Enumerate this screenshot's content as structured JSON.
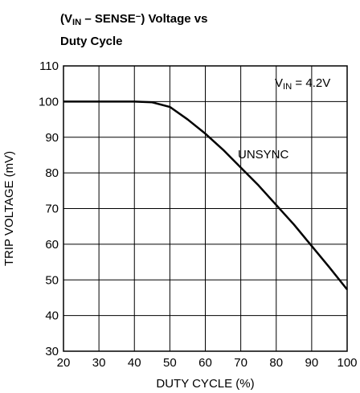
{
  "chart_data": {
    "type": "line",
    "title": [
      [
        {
          "text": "(V"
        },
        {
          "text": "IN",
          "sub": true
        },
        {
          "text": " – SENSE"
        },
        {
          "text": "−",
          "sup": true
        },
        {
          "text": ") Voltage vs"
        }
      ],
      [
        {
          "text": "Duty Cycle"
        }
      ]
    ],
    "xlabel": "DUTY CYCLE (%)",
    "ylabel": "TRIP VOLTAGE (mV)",
    "annotations": [
      [
        {
          "text": "V"
        },
        {
          "text": "IN",
          "sub": true
        },
        {
          "text": " = 4.2V"
        }
      ],
      [
        {
          "text": "UNSYNC"
        }
      ]
    ],
    "x": [
      20,
      30,
      40,
      45,
      50,
      55,
      60,
      65,
      70,
      75,
      80,
      85,
      90,
      95,
      100
    ],
    "series": [
      {
        "name": "UNSYNC",
        "color": "#000000",
        "values": [
          100,
          100,
          100,
          99.8,
          98.5,
          95,
          91,
          86.5,
          81.5,
          76.5,
          71,
          65.5,
          59.5,
          53.5,
          47.3
        ]
      }
    ],
    "xlim": [
      20,
      100
    ],
    "xticks": [
      20,
      30,
      40,
      50,
      60,
      70,
      80,
      90,
      100
    ],
    "ylim": [
      30,
      110
    ],
    "yticks": [
      30,
      40,
      50,
      60,
      70,
      80,
      90,
      100,
      110
    ],
    "grid": true
  }
}
